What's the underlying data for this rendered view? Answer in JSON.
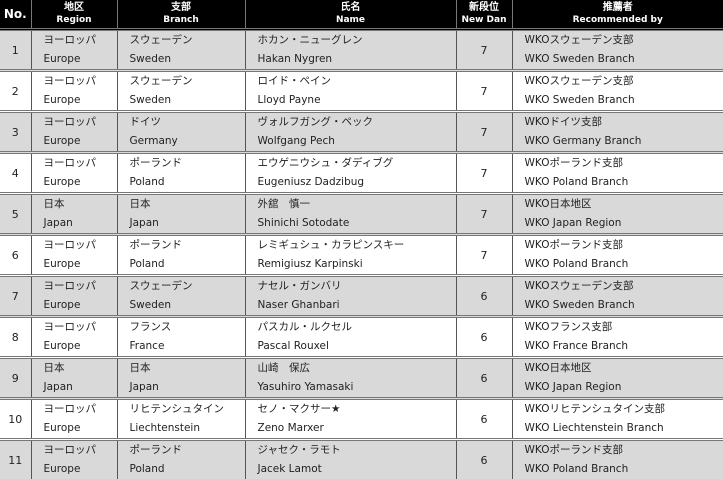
{
  "headers": {
    "no": "No.",
    "region": {
      "jp": "地区",
      "en": "Region"
    },
    "branch": {
      "jp": "支部",
      "en": "Branch"
    },
    "name": {
      "jp": "氏名",
      "en": "Name"
    },
    "dan": {
      "jp": "新段位",
      "en": "New Dan"
    },
    "recommended": {
      "jp": "推薦者",
      "en": "Recommended by"
    }
  },
  "rows": [
    {
      "no": "1",
      "region_jp": "ヨーロッパ",
      "region_en": "Europe",
      "branch_jp": "スウェーデン",
      "branch_en": "Sweden",
      "name_jp": "ホカン・ニューグレン",
      "name_en": "Hakan Nygren",
      "dan": "7",
      "rec_jp": "WKOスウェーデン支部",
      "rec_en": "WKO Sweden Branch"
    },
    {
      "no": "2",
      "region_jp": "ヨーロッパ",
      "region_en": "Europe",
      "branch_jp": "スウェーデン",
      "branch_en": "Sweden",
      "name_jp": "ロイド・ペイン",
      "name_en": "Lloyd Payne",
      "dan": "7",
      "rec_jp": "WKOスウェーデン支部",
      "rec_en": "WKO Sweden Branch"
    },
    {
      "no": "3",
      "region_jp": "ヨーロッパ",
      "region_en": "Europe",
      "branch_jp": "ドイツ",
      "branch_en": "Germany",
      "name_jp": "ヴォルフガング・ペック",
      "name_en": "Wolfgang Pech",
      "dan": "7",
      "rec_jp": "WKOドイツ支部",
      "rec_en": "WKO Germany Branch"
    },
    {
      "no": "4",
      "region_jp": "ヨーロッパ",
      "region_en": "Europe",
      "branch_jp": "ポーランド",
      "branch_en": "Poland",
      "name_jp": "エウゲニウシュ・ダディブグ",
      "name_en": "Eugeniusz Dadzibug",
      "dan": "7",
      "rec_jp": "WKOポーランド支部",
      "rec_en": "WKO Poland Branch"
    },
    {
      "no": "5",
      "region_jp": "日本",
      "region_en": "Japan",
      "branch_jp": "日本",
      "branch_en": "Japan",
      "name_jp": "外舘　慎一",
      "name_en": "Shinichi Sotodate",
      "dan": "7",
      "rec_jp": "WKO日本地区",
      "rec_en": "WKO Japan Region"
    },
    {
      "no": "6",
      "region_jp": "ヨーロッパ",
      "region_en": "Europe",
      "branch_jp": "ポーランド",
      "branch_en": "Poland",
      "name_jp": "レミギュシュ・カラピンスキー",
      "name_en": "Remigiusz Karpinski",
      "dan": "7",
      "rec_jp": "WKOポーランド支部",
      "rec_en": "WKO Poland Branch"
    },
    {
      "no": "7",
      "region_jp": "ヨーロッパ",
      "region_en": "Europe",
      "branch_jp": "スウェーデン",
      "branch_en": "Sweden",
      "name_jp": "ナセル・ガンバリ",
      "name_en": "Naser Ghanbari",
      "dan": "6",
      "rec_jp": "WKOスウェーデン支部",
      "rec_en": "WKO Sweden Branch"
    },
    {
      "no": "8",
      "region_jp": "ヨーロッパ",
      "region_en": "Europe",
      "branch_jp": "フランス",
      "branch_en": "France",
      "name_jp": "パスカル・ルクセル",
      "name_en": "Pascal Rouxel",
      "dan": "6",
      "rec_jp": "WKOフランス支部",
      "rec_en": "WKO France Branch"
    },
    {
      "no": "9",
      "region_jp": "日本",
      "region_en": "Japan",
      "branch_jp": "日本",
      "branch_en": "Japan",
      "name_jp": "山崎　保広",
      "name_en": "Yasuhiro Yamasaki",
      "dan": "6",
      "rec_jp": "WKO日本地区",
      "rec_en": "WKO Japan Region"
    },
    {
      "no": "10",
      "region_jp": "ヨーロッパ",
      "region_en": "Europe",
      "branch_jp": "リヒテンシュタイン",
      "branch_en": "Liechtenstein",
      "name_jp": "セノ・マクサー★",
      "name_en": "Zeno Marxer",
      "dan": "6",
      "rec_jp": "WKOリヒテンシュタイン支部",
      "rec_en": "WKO Liechtenstein Branch"
    },
    {
      "no": "11",
      "region_jp": "ヨーロッパ",
      "region_en": "Europe",
      "branch_jp": "ポーランド",
      "branch_en": "Poland",
      "name_jp": "ジャセク・ラモト",
      "name_en": "Jacek Lamot",
      "dan": "6",
      "rec_jp": "WKOポーランド支部",
      "rec_en": "WKO Poland Branch"
    }
  ]
}
